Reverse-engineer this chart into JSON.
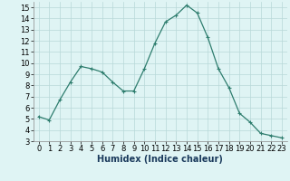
{
  "x": [
    0,
    1,
    2,
    3,
    4,
    5,
    6,
    7,
    8,
    9,
    10,
    11,
    12,
    13,
    14,
    15,
    16,
    17,
    18,
    19,
    20,
    21,
    22,
    23
  ],
  "y": [
    5.2,
    4.9,
    6.7,
    8.3,
    9.7,
    9.5,
    9.2,
    8.3,
    7.5,
    7.5,
    9.5,
    11.8,
    13.7,
    14.3,
    15.2,
    14.5,
    12.3,
    9.5,
    7.8,
    5.5,
    4.7,
    3.7,
    3.5,
    3.3
  ],
  "line_color": "#2e7d6e",
  "marker": "+",
  "marker_size": 3,
  "bg_color": "#dff4f4",
  "grid_color": "#b8d8d8",
  "xlabel": "Humidex (Indice chaleur)",
  "xlabel_color": "#1a3a5c",
  "ylim": [
    3,
    15.5
  ],
  "xlim": [
    -0.5,
    23.5
  ],
  "yticks": [
    3,
    4,
    5,
    6,
    7,
    8,
    9,
    10,
    11,
    12,
    13,
    14,
    15
  ],
  "xticks": [
    0,
    1,
    2,
    3,
    4,
    5,
    6,
    7,
    8,
    9,
    10,
    11,
    12,
    13,
    14,
    15,
    16,
    17,
    18,
    19,
    20,
    21,
    22,
    23
  ],
  "tick_fontsize": 6,
  "xlabel_fontsize": 7
}
